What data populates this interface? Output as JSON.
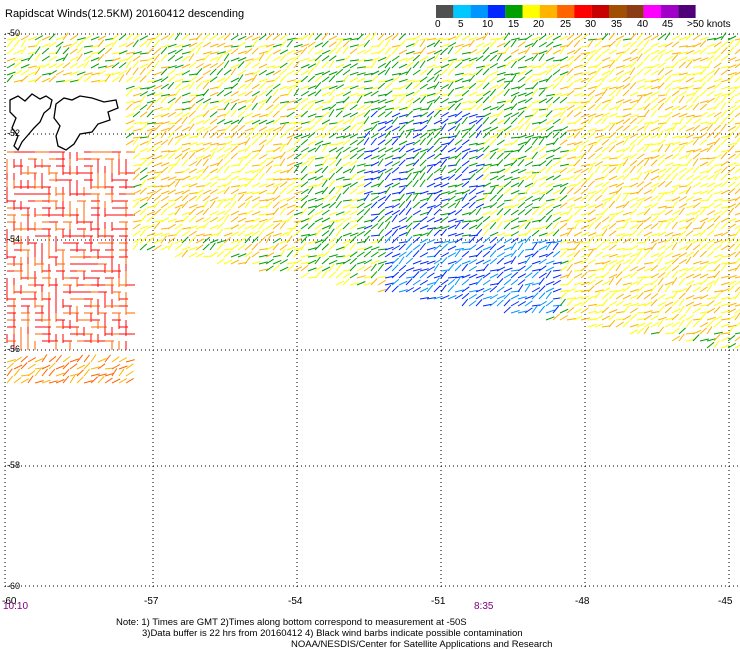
{
  "title": "Rapidscat Winds(12.5KM) 20160412 descending",
  "legend": {
    "labels": [
      "0",
      "5",
      "10",
      "15",
      "20",
      "25",
      "30",
      "35",
      "40",
      "45",
      ">50 knots"
    ],
    "colors": [
      "#505050",
      "#00c8ff",
      "#0096ff",
      "#0028ff",
      "#00a000",
      "#ffff00",
      "#ffb400",
      "#ff6400",
      "#ff0000",
      "#c80000",
      "#a05000",
      "#8c3c14",
      "#ff00ff",
      "#a000c8",
      "#500078"
    ]
  },
  "map": {
    "lat_labels": [
      "-50",
      "-52",
      "-54",
      "-56",
      "-58",
      "-60"
    ],
    "lon_labels": [
      "-60",
      "-57",
      "-54",
      "-51",
      "-48",
      "-45"
    ],
    "time_labels": [
      "10:10",
      "8:35"
    ],
    "land": "Falkland Islands"
  },
  "notes": {
    "line1": "Note: 1) Times are GMT 2)Times along bottom correspond to measurement at -50S",
    "line2": "3)Data buffer is 22 hrs from 20160412 4) Black wind barbs indicate possible contamination",
    "line3": "NOAA/NESDIS/Center for Satellite Applications and Research"
  }
}
